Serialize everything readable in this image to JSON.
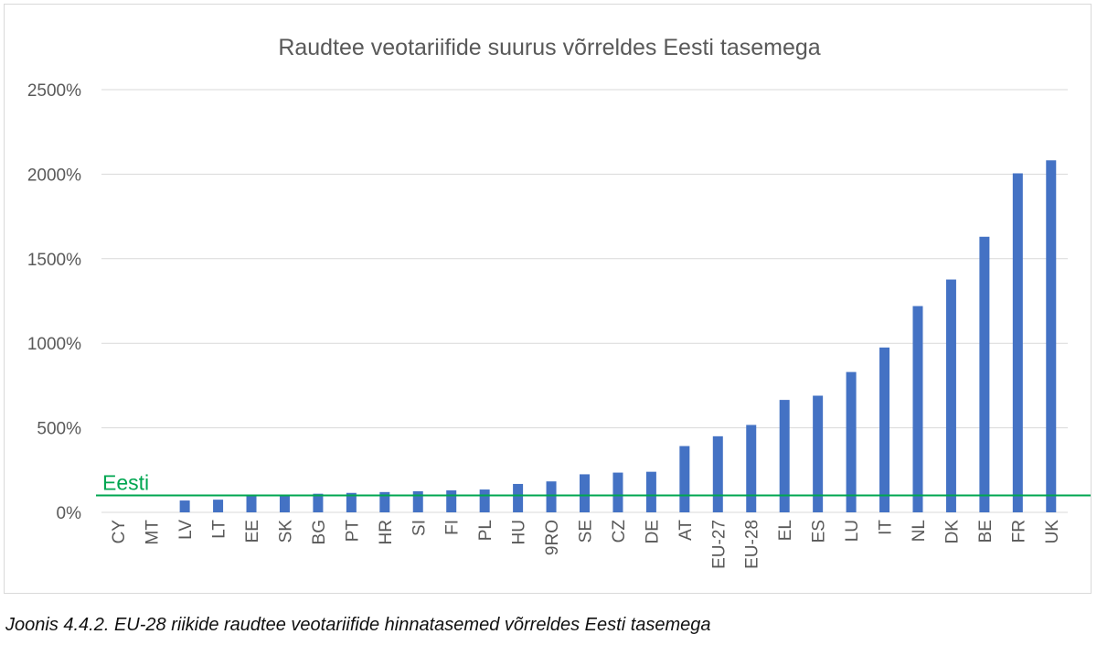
{
  "caption": "Joonis 4.4.2. EU-28 riikide raudtee veotariifide  hinnatasemed võrreldes Eesti tasemega",
  "chart_data": {
    "type": "bar",
    "title": "Raudtee veotariifide suurus võrreldes Eesti tasemega",
    "xlabel": "",
    "ylabel": "",
    "categories": [
      "CY",
      "MT",
      "LV",
      "LT",
      "EE",
      "SK",
      "BG",
      "PT",
      "HR",
      "SI",
      "FI",
      "PL",
      "HU",
      "9RO",
      "SE",
      "CZ",
      "DE",
      "AT",
      "EU-27",
      "EU-28",
      "EL",
      "ES",
      "LU",
      "IT",
      "NL",
      "DK",
      "BE",
      "FR",
      "UK"
    ],
    "values": [
      0,
      0,
      70,
      75,
      95,
      105,
      110,
      115,
      120,
      125,
      130,
      135,
      168,
      183,
      225,
      235,
      240,
      392,
      450,
      517,
      665,
      690,
      830,
      975,
      1220,
      1377,
      1630,
      2005,
      2082
    ],
    "yticks": [
      0,
      500,
      1000,
      1500,
      2000,
      2500
    ],
    "ytick_labels": [
      "0%",
      "500%",
      "1000%",
      "1500%",
      "2000%",
      "2500%"
    ],
    "ylim": [
      0,
      2500
    ],
    "grid": true,
    "bar_color": "#4472c4",
    "reference_line": {
      "label": "Eesti",
      "value": 100,
      "color": "#00a651"
    }
  }
}
